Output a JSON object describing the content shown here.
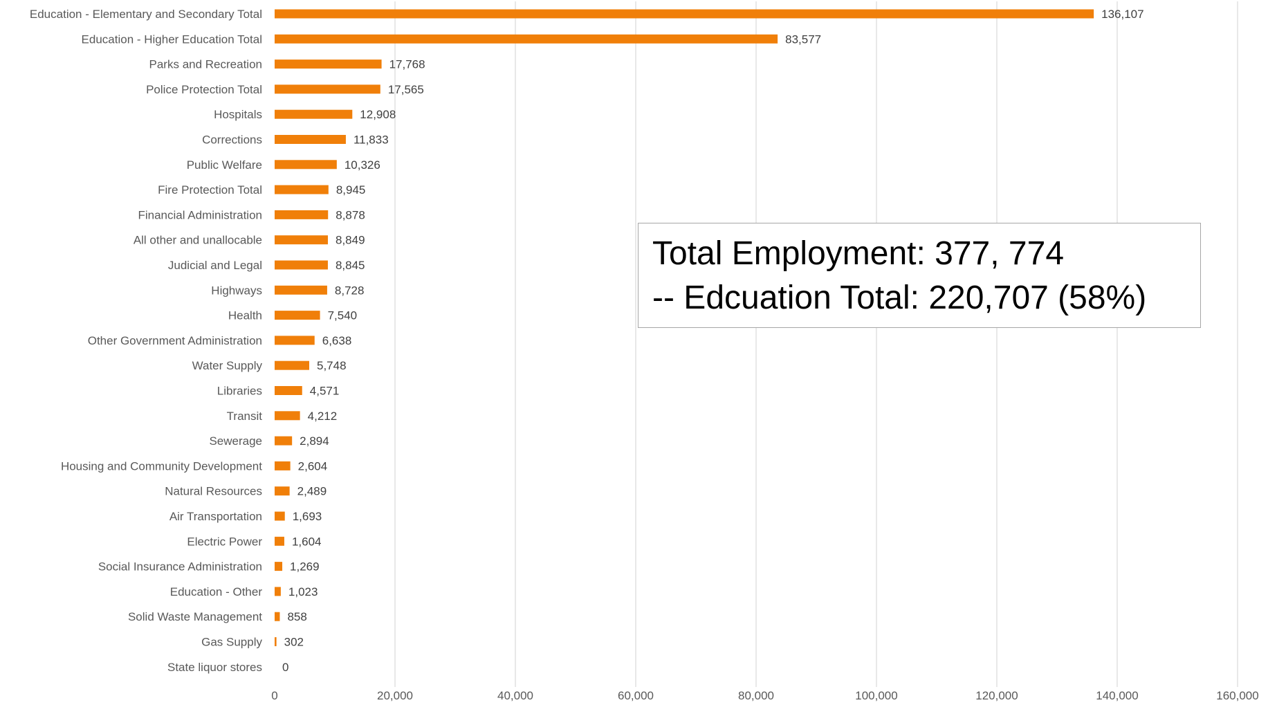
{
  "chart_data": {
    "type": "bar",
    "orientation": "horizontal",
    "categories": [
      "Education - Elementary and Secondary Total",
      "Education - Higher Education Total",
      "Parks and Recreation",
      "Police Protection Total",
      "Hospitals",
      "Corrections",
      "Public Welfare",
      "Fire Protection Total",
      "Financial Administration",
      "All other and unallocable",
      "Judicial and Legal",
      "Highways",
      "Health",
      "Other Government Administration",
      "Water Supply",
      "Libraries",
      "Transit",
      "Sewerage",
      "Housing and Community Development",
      "Natural Resources",
      "Air Transportation",
      "Electric Power",
      "Social Insurance Administration",
      "Education - Other",
      "Solid Waste Management",
      "Gas Supply",
      "State liquor stores"
    ],
    "values": [
      136107,
      83577,
      17768,
      17565,
      12908,
      11833,
      10326,
      8945,
      8878,
      8849,
      8845,
      8728,
      7540,
      6638,
      5748,
      4571,
      4212,
      2894,
      2604,
      2489,
      1693,
      1604,
      1269,
      1023,
      858,
      302,
      0
    ],
    "value_labels": [
      "136,107",
      "83,577",
      "17,768",
      "17,565",
      "12,908",
      "11,833",
      "10,326",
      "8,945",
      "8,878",
      "8,849",
      "8,845",
      "8,728",
      "7,540",
      "6,638",
      "5,748",
      "4,571",
      "4,212",
      "2,894",
      "2,604",
      "2,489",
      "1,693",
      "1,604",
      "1,269",
      "1,023",
      "858",
      "302",
      "0"
    ],
    "xlim": [
      0,
      160000
    ],
    "x_ticks": [
      0,
      20000,
      40000,
      60000,
      80000,
      100000,
      120000,
      140000,
      160000
    ],
    "x_tick_labels": [
      "0",
      "20,000",
      "40,000",
      "60,000",
      "80,000",
      "100,000",
      "120,000",
      "140,000",
      "160,000"
    ],
    "bar_color": "#f07f09",
    "grid": true,
    "legend": false
  },
  "annotation": {
    "line1": "Total Employment: 377, 774",
    "line2": "-- Edcuation Total: 220,707 (58%)"
  }
}
